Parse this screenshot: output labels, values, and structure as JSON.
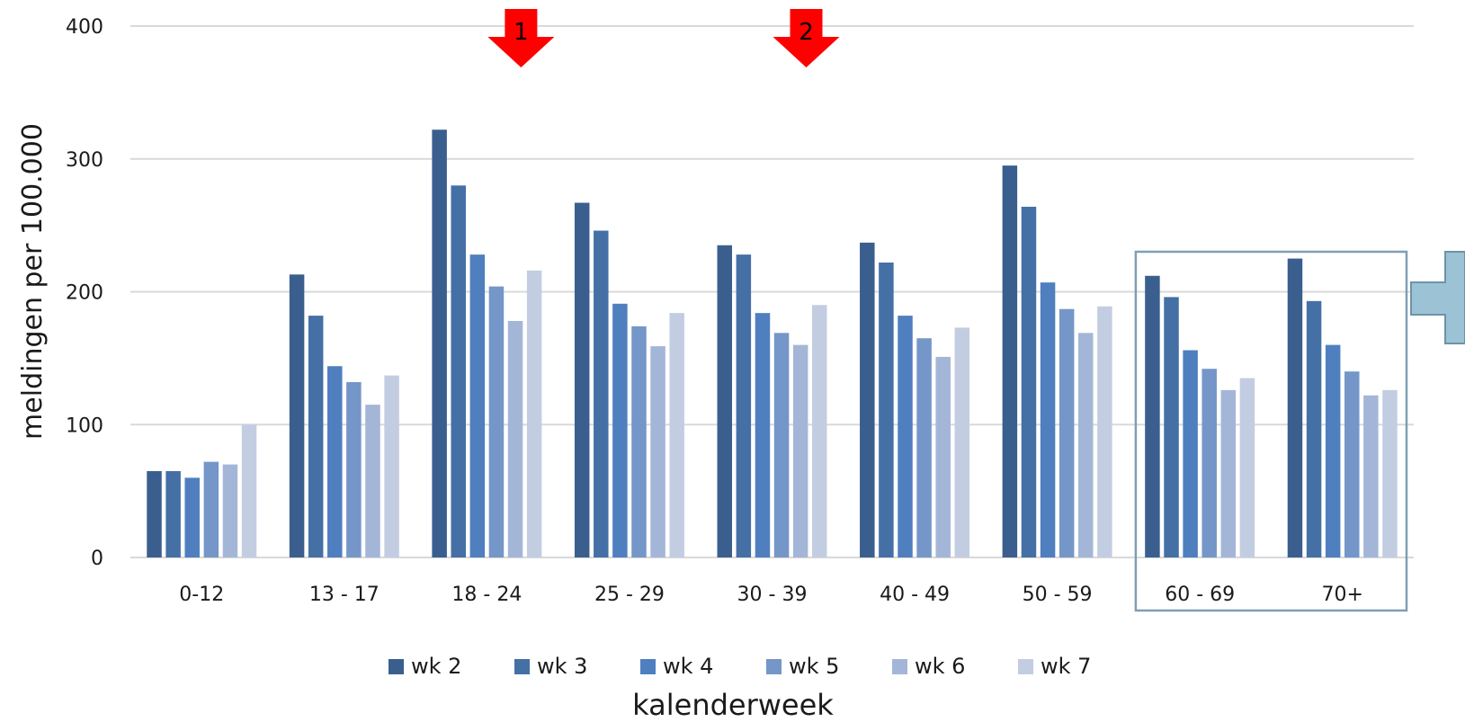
{
  "chart_data": {
    "type": "bar",
    "categories": [
      "0-12",
      "13 - 17",
      "18 - 24",
      "25 - 29",
      "30 - 39",
      "40 - 49",
      "50 - 59",
      "60 - 69",
      "70+"
    ],
    "series": [
      {
        "name": "wk 2",
        "color": "#3a5f8f",
        "values": [
          65,
          213,
          322,
          267,
          235,
          237,
          295,
          212,
          225
        ]
      },
      {
        "name": "wk 3",
        "color": "#4470a6",
        "values": [
          65,
          182,
          280,
          246,
          228,
          222,
          264,
          196,
          193
        ]
      },
      {
        "name": "wk 4",
        "color": "#4f7fbf",
        "values": [
          60,
          144,
          228,
          191,
          184,
          182,
          207,
          156,
          160
        ]
      },
      {
        "name": "wk 5",
        "color": "#7596c8",
        "values": [
          72,
          132,
          204,
          174,
          169,
          165,
          187,
          142,
          140
        ]
      },
      {
        "name": "wk 6",
        "color": "#a4b6d8",
        "values": [
          70,
          115,
          178,
          159,
          160,
          151,
          169,
          126,
          122
        ]
      },
      {
        "name": "wk 7",
        "color": "#c3cde2",
        "values": [
          100,
          137,
          216,
          184,
          190,
          173,
          189,
          135,
          126
        ]
      }
    ],
    "ylabel": "meldingen per 100.000",
    "xlabel": "kalenderweek",
    "ylim": [
      0,
      400
    ],
    "yticks": [
      0,
      100,
      200,
      300,
      400
    ],
    "grid": true,
    "legend_position": "bottom",
    "annotations": [
      {
        "type": "arrow-down",
        "label": "1",
        "category": "18 - 24",
        "color": "#ff0000"
      },
      {
        "type": "arrow-down",
        "label": "2",
        "category": "30 - 39",
        "color": "#ff0000"
      },
      {
        "type": "highlight-box",
        "categories": [
          "60 - 69",
          "70+"
        ],
        "color": "#7f9fb2"
      },
      {
        "type": "arrow-right",
        "color": "#9cc3d5"
      }
    ]
  }
}
